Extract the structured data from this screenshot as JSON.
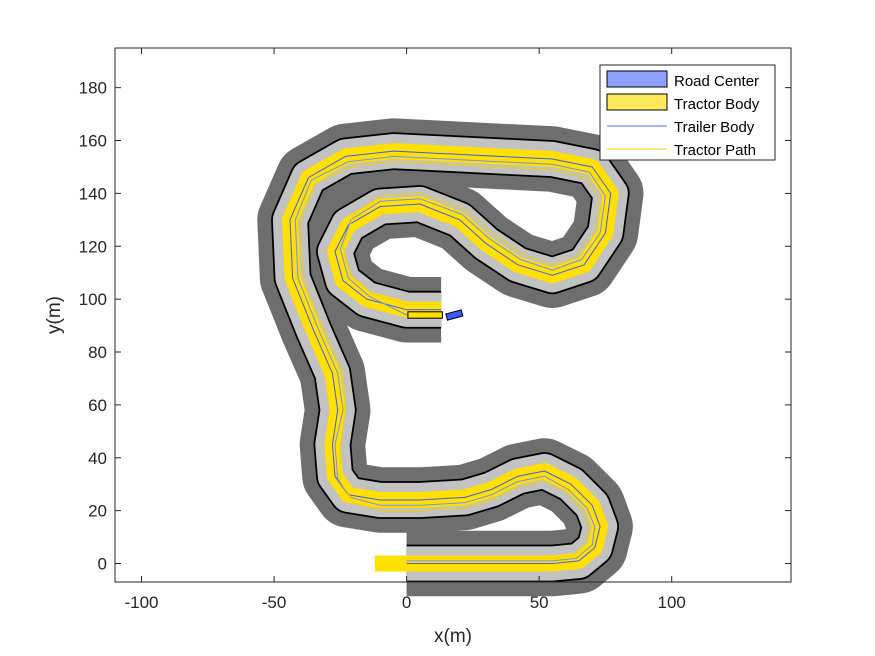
{
  "chart_data": {
    "type": "line",
    "title": "",
    "xlabel": "x(m)",
    "ylabel": "y(m)",
    "xlim": [
      -110,
      145
    ],
    "ylim": [
      -7,
      195
    ],
    "grid": false,
    "legend_position": "top-right",
    "xticks": [
      -100,
      -50,
      0,
      50,
      100
    ],
    "yticks": [
      0,
      20,
      40,
      60,
      80,
      100,
      120,
      140,
      160,
      180
    ],
    "xtick_labels": [
      "-100",
      "-50",
      "0",
      "50",
      "100"
    ],
    "ytick_labels": [
      "0",
      "20",
      "40",
      "60",
      "80",
      "100",
      "120",
      "140",
      "160",
      "180"
    ],
    "road": {
      "outer_color": "#6e6e6e",
      "lane_color": "#c2c2c2",
      "edge_color": "#000000",
      "start": [
        0,
        0
      ],
      "end": [
        13,
        96
      ]
    },
    "centerline": [
      [
        0,
        0
      ],
      [
        20,
        0
      ],
      [
        40,
        0
      ],
      [
        55,
        0
      ],
      [
        65,
        1
      ],
      [
        71,
        6
      ],
      [
        73,
        14
      ],
      [
        70,
        22
      ],
      [
        62,
        30
      ],
      [
        52,
        35
      ],
      [
        42,
        33
      ],
      [
        32,
        28
      ],
      [
        22,
        25
      ],
      [
        5,
        24
      ],
      [
        -10,
        24
      ],
      [
        -22,
        26
      ],
      [
        -27,
        33
      ],
      [
        -28,
        45
      ],
      [
        -26,
        58
      ],
      [
        -28,
        72
      ],
      [
        -35,
        88
      ],
      [
        -43,
        108
      ],
      [
        -44,
        130
      ],
      [
        -37,
        146
      ],
      [
        -23,
        154
      ],
      [
        -5,
        156
      ],
      [
        15,
        155
      ],
      [
        35,
        154
      ],
      [
        55,
        153
      ],
      [
        70,
        150
      ],
      [
        77,
        140
      ],
      [
        75,
        125
      ],
      [
        67,
        113
      ],
      [
        55,
        109
      ],
      [
        42,
        113
      ],
      [
        30,
        121
      ],
      [
        20,
        130
      ],
      [
        5,
        136
      ],
      [
        -10,
        135
      ],
      [
        -22,
        128
      ],
      [
        -27,
        118
      ],
      [
        -24,
        107
      ],
      [
        -15,
        100
      ],
      [
        0,
        96
      ],
      [
        13,
        96
      ]
    ],
    "series": [
      {
        "name": "Road Center",
        "color": "#3a5cff",
        "points": [
          [
            0,
            0
          ],
          [
            20,
            0
          ],
          [
            40,
            0
          ],
          [
            55,
            0
          ],
          [
            65,
            1
          ],
          [
            71,
            6
          ],
          [
            73,
            14
          ],
          [
            70,
            22
          ],
          [
            62,
            30
          ],
          [
            52,
            35
          ],
          [
            42,
            33
          ],
          [
            32,
            28
          ],
          [
            22,
            25
          ],
          [
            5,
            24
          ],
          [
            -10,
            24
          ],
          [
            -22,
            26
          ],
          [
            -27,
            33
          ],
          [
            -28,
            45
          ],
          [
            -26,
            58
          ],
          [
            -28,
            72
          ],
          [
            -35,
            88
          ],
          [
            -43,
            108
          ],
          [
            -44,
            130
          ],
          [
            -37,
            146
          ],
          [
            -23,
            154
          ],
          [
            -5,
            156
          ],
          [
            15,
            155
          ],
          [
            35,
            154
          ],
          [
            55,
            153
          ],
          [
            70,
            150
          ],
          [
            77,
            140
          ],
          [
            75,
            125
          ],
          [
            67,
            113
          ],
          [
            55,
            109
          ],
          [
            42,
            113
          ],
          [
            30,
            121
          ],
          [
            20,
            130
          ],
          [
            5,
            136
          ],
          [
            -10,
            135
          ],
          [
            -22,
            128
          ],
          [
            -27,
            118
          ],
          [
            -24,
            107
          ],
          [
            -15,
            100
          ],
          [
            0,
            96
          ],
          [
            13,
            96
          ]
        ]
      },
      {
        "name": "Tractor Body",
        "color": "#ffe000",
        "points": [
          [
            -12,
            0
          ],
          [
            0,
            0
          ],
          [
            20,
            0
          ],
          [
            40,
            0
          ],
          [
            55,
            0
          ],
          [
            65,
            1
          ],
          [
            71,
            6
          ],
          [
            73,
            14
          ],
          [
            70,
            22
          ],
          [
            62,
            30
          ],
          [
            52,
            35
          ],
          [
            42,
            33
          ],
          [
            32,
            28
          ],
          [
            22,
            25
          ],
          [
            5,
            24
          ],
          [
            -10,
            24
          ],
          [
            -22,
            26
          ],
          [
            -27,
            33
          ],
          [
            -28,
            45
          ],
          [
            -26,
            58
          ],
          [
            -28,
            72
          ],
          [
            -35,
            88
          ],
          [
            -43,
            108
          ],
          [
            -44,
            130
          ],
          [
            -37,
            146
          ],
          [
            -23,
            154
          ],
          [
            -5,
            156
          ],
          [
            15,
            155
          ],
          [
            35,
            154
          ],
          [
            55,
            153
          ],
          [
            70,
            150
          ],
          [
            77,
            140
          ],
          [
            75,
            125
          ],
          [
            67,
            113
          ],
          [
            55,
            109
          ],
          [
            42,
            113
          ],
          [
            30,
            121
          ],
          [
            20,
            130
          ],
          [
            5,
            136
          ],
          [
            -10,
            135
          ],
          [
            -22,
            128
          ],
          [
            -27,
            118
          ],
          [
            -24,
            107
          ],
          [
            -15,
            100
          ],
          [
            0,
            96
          ],
          [
            13,
            96
          ]
        ]
      },
      {
        "name": "Trailer Body",
        "color": "#6f8fff",
        "points": [
          [
            0,
            1
          ],
          [
            20,
            1
          ],
          [
            40,
            1
          ],
          [
            55,
            1
          ],
          [
            64,
            2
          ],
          [
            70,
            7
          ],
          [
            71,
            14
          ],
          [
            68,
            21
          ],
          [
            61,
            28
          ],
          [
            52,
            33
          ],
          [
            42,
            31
          ],
          [
            32,
            26
          ],
          [
            22,
            23
          ],
          [
            5,
            22
          ],
          [
            -10,
            22
          ],
          [
            -21,
            25
          ],
          [
            -26,
            32
          ],
          [
            -27,
            45
          ],
          [
            -24,
            58
          ],
          [
            -26,
            72
          ],
          [
            -33,
            88
          ],
          [
            -41,
            108
          ],
          [
            -42,
            130
          ],
          [
            -36,
            145
          ],
          [
            -22,
            152
          ],
          [
            -5,
            154
          ],
          [
            15,
            153
          ],
          [
            35,
            152
          ],
          [
            55,
            151
          ],
          [
            69,
            148
          ],
          [
            75,
            139
          ],
          [
            73,
            125
          ],
          [
            66,
            115
          ],
          [
            55,
            111
          ],
          [
            43,
            115
          ],
          [
            31,
            123
          ],
          [
            21,
            132
          ],
          [
            5,
            138
          ],
          [
            -10,
            137
          ],
          [
            -21,
            130
          ],
          [
            -25,
            119
          ],
          [
            -22,
            108
          ],
          [
            -14,
            101
          ],
          [
            0,
            94
          ],
          [
            12,
            94
          ]
        ]
      },
      {
        "name": "Tractor Path",
        "color": "#f2d000",
        "points": [
          [
            0,
            2
          ],
          [
            20,
            2
          ],
          [
            40,
            2
          ],
          [
            55,
            2
          ],
          [
            63,
            3
          ],
          [
            68,
            8
          ],
          [
            69,
            14
          ],
          [
            66,
            20
          ],
          [
            60,
            27
          ],
          [
            52,
            31
          ],
          [
            42,
            29
          ],
          [
            32,
            24
          ],
          [
            22,
            21
          ],
          [
            5,
            20
          ],
          [
            -10,
            20
          ],
          [
            -20,
            23
          ],
          [
            -25,
            31
          ],
          [
            -25,
            45
          ],
          [
            -23,
            58
          ],
          [
            -24,
            72
          ],
          [
            -31,
            88
          ],
          [
            -39,
            108
          ],
          [
            -40,
            130
          ],
          [
            -34,
            144
          ],
          [
            -21,
            150
          ],
          [
            -5,
            152
          ],
          [
            15,
            151
          ],
          [
            35,
            150
          ],
          [
            55,
            149
          ],
          [
            67,
            146
          ],
          [
            73,
            138
          ],
          [
            71,
            125
          ],
          [
            64,
            116
          ],
          [
            55,
            113
          ],
          [
            44,
            117
          ],
          [
            32,
            125
          ],
          [
            22,
            134
          ],
          [
            5,
            140
          ],
          [
            -10,
            139
          ],
          [
            -20,
            132
          ],
          [
            -24,
            120
          ],
          [
            -21,
            109
          ],
          [
            -13,
            102
          ],
          [
            0,
            98
          ],
          [
            12,
            98
          ]
        ]
      }
    ],
    "vehicles": {
      "tractor_box": {
        "center": [
          18,
          94
        ],
        "length": 6,
        "width": 2.4,
        "heading_deg": 15,
        "color": "#3a5cff"
      },
      "trailer_box": {
        "center": [
          7,
          94
        ],
        "length": 13,
        "width": 2.4,
        "heading_deg": 0,
        "color": "#ffe000"
      }
    }
  }
}
